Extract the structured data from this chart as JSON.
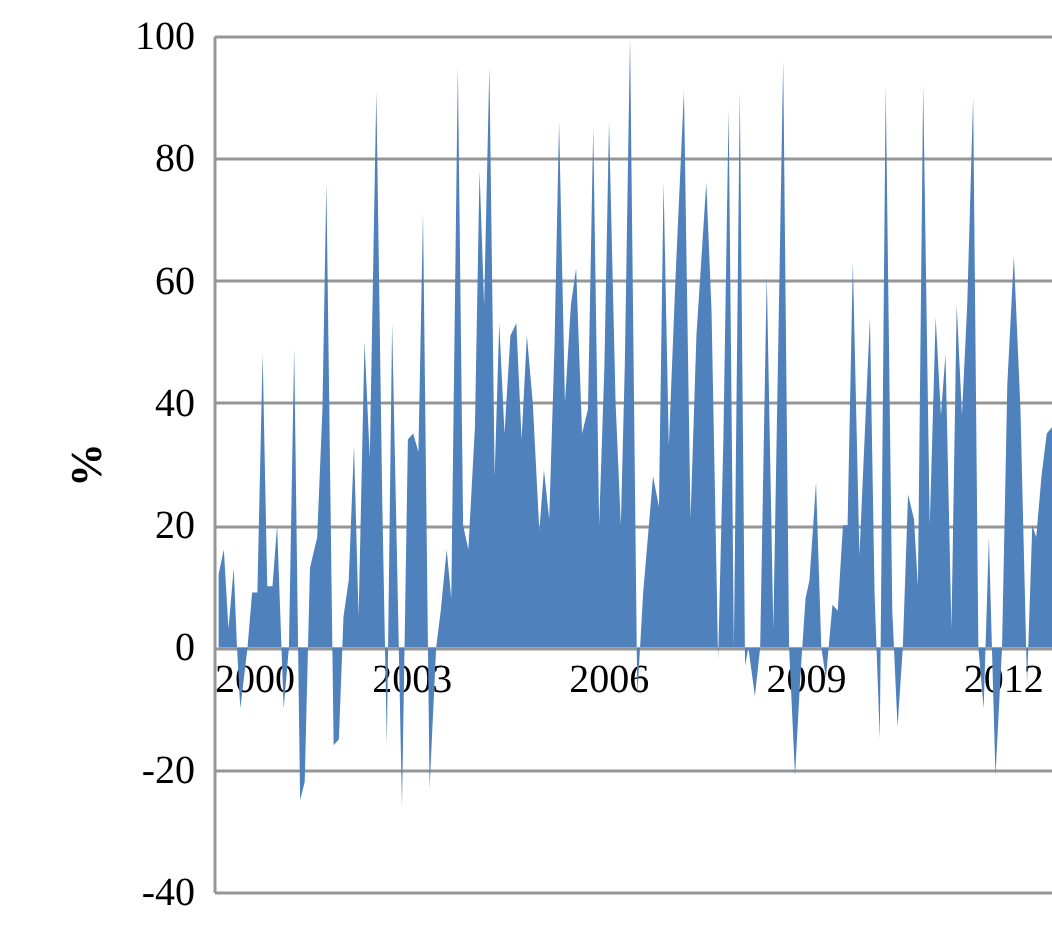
{
  "chart_data": {
    "type": "area",
    "ylabel": "%",
    "xlim": [
      2000,
      2012.75
    ],
    "xticks": [
      2000,
      2003,
      2006,
      2009,
      2012
    ],
    "ylim": [
      -40,
      100
    ],
    "yticks": [
      -40,
      -20,
      0,
      20,
      40,
      60,
      80,
      100
    ],
    "grid": "y",
    "series": [
      {
        "color": "#4f81bd",
        "x": [
          2000.07,
          2000.15,
          2000.22,
          2000.3,
          2000.35,
          2000.4,
          2000.51,
          2000.58,
          2000.66,
          2000.74,
          2000.81,
          2000.89,
          2000.96,
          2001.06,
          2001.14,
          2001.22,
          2001.31,
          2001.38,
          2001.46,
          2001.57,
          2001.65,
          2001.71,
          2001.82,
          2001.9,
          2001.97,
          2002.05,
          2002.13,
          2002.2,
          2002.29,
          2002.37,
          2002.47,
          2002.56,
          2002.63,
          2002.71,
          2002.78,
          2002.86,
          2002.95,
          2003.03,
          2003.11,
          2003.18,
          2003.28,
          2003.38,
          2003.45,
          2003.54,
          2003.61,
          2003.71,
          2003.79,
          2003.87,
          2003.97,
          2004.04,
          2004.11,
          2004.19,
          2004.27,
          2004.34,
          2004.42,
          2004.51,
          2004.6,
          2004.68,
          2004.76,
          2004.85,
          2004.95,
          2005.02,
          2005.1,
          2005.18,
          2005.25,
          2005.34,
          2005.43,
          2005.51,
          2005.6,
          2005.69,
          2005.77,
          2005.86,
          2005.94,
          2006.01,
          2006.11,
          2006.19,
          2006.25,
          2006.33,
          2006.44,
          2006.53,
          2006.68,
          2006.77,
          2006.84,
          2006.92,
          2007.02,
          2007.15,
          2007.25,
          2007.34,
          2007.49,
          2007.57,
          2007.67,
          2007.75,
          2007.83,
          2007.91,
          2008.0,
          2008.08,
          2008.13,
          2008.23,
          2008.31,
          2008.41,
          2008.51,
          2008.66,
          2008.75,
          2008.84,
          2008.92,
          2009.0,
          2009.06,
          2009.16,
          2009.24,
          2009.31,
          2009.41,
          2009.49,
          2009.57,
          2009.64,
          2009.72,
          2009.82,
          2009.98,
          2010.05,
          2010.13,
          2010.22,
          2010.32,
          2010.4,
          2010.48,
          2010.56,
          2010.65,
          2010.71,
          2010.79,
          2010.89,
          2010.98,
          2011.06,
          2011.13,
          2011.22,
          2011.3,
          2011.38,
          2011.46,
          2011.55,
          2011.63,
          2011.71,
          2011.79,
          2011.89,
          2011.99,
          2012.07,
          2012.17,
          2012.27,
          2012.37,
          2012.45,
          2012.51,
          2012.59,
          2012.67,
          2012.75
        ],
        "values": [
          12,
          16,
          3,
          13,
          0,
          -10,
          0,
          9,
          9,
          48,
          10,
          10,
          20,
          -10,
          0,
          49,
          -25,
          -22,
          13,
          18,
          39,
          76,
          -16,
          -15,
          5,
          11,
          33,
          5,
          50,
          31,
          91,
          24,
          -16,
          53,
          17,
          -26,
          34,
          35,
          32,
          71,
          -23,
          0,
          6,
          16,
          8,
          95,
          20,
          16,
          36,
          78,
          56,
          95,
          28,
          53,
          35,
          51,
          53,
          34,
          51,
          40,
          19,
          29,
          21,
          49,
          86,
          40,
          56,
          62,
          35,
          39,
          85,
          20,
          46,
          86,
          40,
          20,
          46,
          100,
          -8,
          9,
          28,
          23,
          76,
          33,
          60,
          91,
          21,
          51,
          76,
          55,
          -2,
          34,
          88,
          0,
          91,
          -3,
          0,
          -8,
          0,
          61,
          3,
          96,
          0,
          -21,
          -5,
          8,
          11,
          27,
          0,
          -5,
          7,
          6,
          20,
          20,
          63,
          15,
          54,
          9,
          -15,
          92,
          6,
          -13,
          0,
          25,
          21,
          10,
          92,
          20,
          54,
          38,
          48,
          3,
          56,
          38,
          56,
          90,
          0,
          -10,
          18,
          -21,
          0,
          43,
          64,
          39,
          -6,
          20,
          18,
          28,
          35,
          36
        ]
      }
    ]
  }
}
